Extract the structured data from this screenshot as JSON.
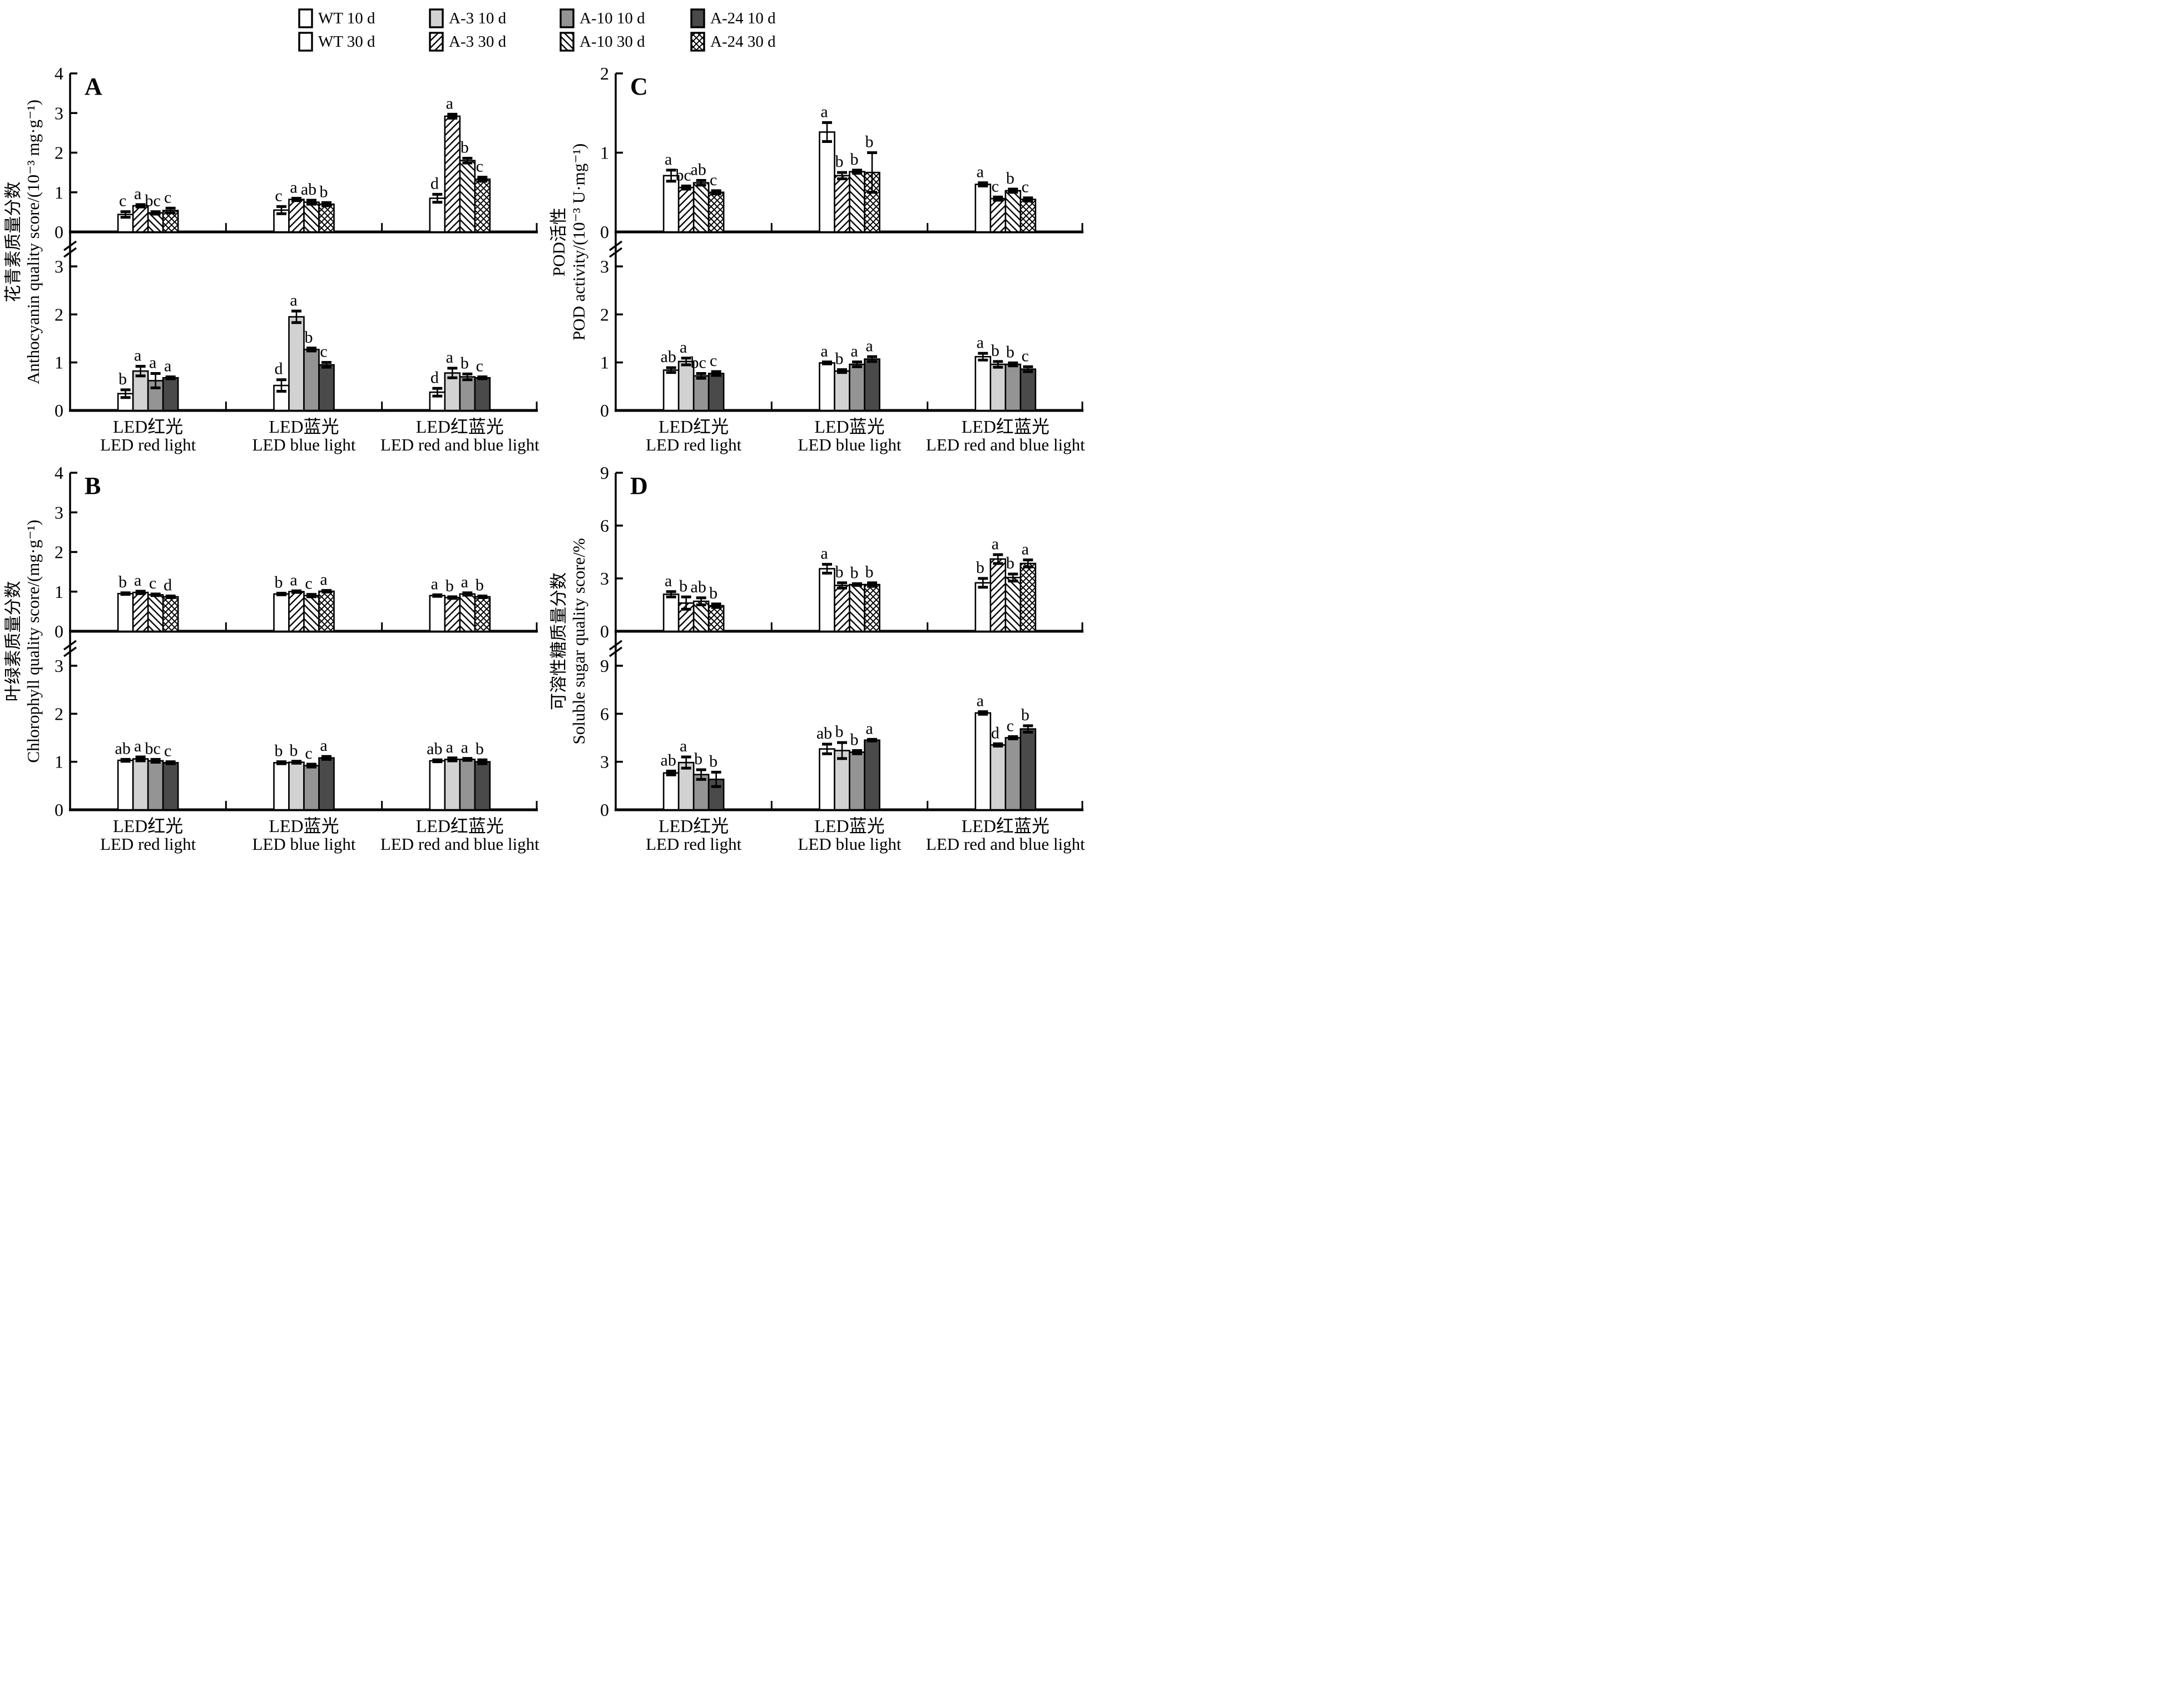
{
  "legend": {
    "items": [
      {
        "label": "WT 10 d",
        "series": "WT 10 d"
      },
      {
        "label": "A-3 10 d",
        "series": "A-3 10 d"
      },
      {
        "label": "A-10 10 d",
        "series": "A-10 10 d"
      },
      {
        "label": "A-24 10 d",
        "series": "A-24 10 d"
      },
      {
        "label": "WT 30 d",
        "series": "WT 30 d"
      },
      {
        "label": "A-3 30 d",
        "series": "A-3 30 d"
      },
      {
        "label": "A-10 30 d",
        "series": "A-10 30 d"
      },
      {
        "label": "A-24 30 d",
        "series": "A-24 30 d"
      }
    ]
  },
  "series_styles": {
    "WT 10 d": {
      "style": "solid",
      "fill": "#ffffff"
    },
    "A-3 10 d": {
      "style": "solid",
      "fill": "#d2d2d2"
    },
    "A-10 10 d": {
      "style": "solid",
      "fill": "#949494"
    },
    "A-24 10 d": {
      "style": "solid",
      "fill": "#4a4a4a"
    },
    "WT 30 d": {
      "style": "solid",
      "fill": "#ffffff"
    },
    "A-3 30 d": {
      "style": "hatch-fwd",
      "fill": "#ffffff"
    },
    "A-10 30 d": {
      "style": "hatch-back",
      "fill": "#ffffff"
    },
    "A-24 30 d": {
      "style": "hatch-cross",
      "fill": "#ffffff"
    }
  },
  "ink_color": "#000000",
  "x_groups": [
    {
      "label_cn": "LED红光",
      "label_en": "LED red light"
    },
    {
      "label_cn": "LED蓝光",
      "label_en": "LED blue light"
    },
    {
      "label_cn": "LED红蓝光",
      "label_en": "LED red and blue light"
    }
  ],
  "chart_data": [
    {
      "panel": "A",
      "type": "bar",
      "grid_position": "top-left",
      "ylabel_cn": "花青素质量分数",
      "ylabel_en": "Anthocyanin quality score/(10⁻³ mg·g⁻¹)",
      "categories": [
        "LED red light",
        "LED blue light",
        "LED red and blue light"
      ],
      "top": {
        "day": "30 d",
        "yticks": [
          0,
          1,
          2,
          3,
          4
        ],
        "axis_break": false,
        "series": [
          {
            "name": "WT 30 d",
            "values": [
              0.44,
              0.55,
              0.85
            ],
            "errors": [
              0.07,
              0.09,
              0.1
            ],
            "letters": [
              "c",
              "c",
              "d"
            ]
          },
          {
            "name": "A-3 30 d",
            "values": [
              0.66,
              0.82,
              2.92
            ],
            "errors": [
              0.03,
              0.03,
              0.05
            ],
            "letters": [
              "a",
              "a",
              "a"
            ]
          },
          {
            "name": "A-10 30 d",
            "values": [
              0.48,
              0.75,
              1.8
            ],
            "errors": [
              0.03,
              0.05,
              0.06
            ],
            "letters": [
              "bc",
              "ab",
              "b"
            ]
          },
          {
            "name": "A-24 30 d",
            "values": [
              0.54,
              0.7,
              1.33
            ],
            "errors": [
              0.06,
              0.04,
              0.05
            ],
            "letters": [
              "c",
              "b",
              "c"
            ]
          }
        ]
      },
      "bottom": {
        "day": "10 d",
        "yticks": [
          0,
          1,
          2,
          3
        ],
        "axis_break": true,
        "series": [
          {
            "name": "WT 10 d",
            "values": [
              0.35,
              0.52,
              0.38
            ],
            "errors": [
              0.08,
              0.12,
              0.08
            ],
            "letters": [
              "b",
              "d",
              "d"
            ]
          },
          {
            "name": "A-3 10 d",
            "values": [
              0.82,
              1.95,
              0.78
            ],
            "errors": [
              0.1,
              0.12,
              0.1
            ],
            "letters": [
              "a",
              "a",
              "a"
            ]
          },
          {
            "name": "A-10 10 d",
            "values": [
              0.62,
              1.27,
              0.7
            ],
            "errors": [
              0.15,
              0.03,
              0.06
            ],
            "letters": [
              "a",
              "b",
              "b"
            ]
          },
          {
            "name": "A-24 10 d",
            "values": [
              0.68,
              0.95,
              0.68
            ],
            "errors": [
              0.02,
              0.05,
              0.02
            ],
            "letters": [
              "a",
              "c",
              "c"
            ]
          }
        ]
      }
    },
    {
      "panel": "C",
      "type": "bar",
      "grid_position": "top-right",
      "ylabel_cn": "POD活性",
      "ylabel_en": "POD activity/(10⁻³ U·mg⁻¹)",
      "categories": [
        "LED red light",
        "LED blue light",
        "LED red and blue light"
      ],
      "top": {
        "day": "30 d",
        "yticks": [
          0,
          1,
          2
        ],
        "axis_break": false,
        "series": [
          {
            "name": "WT 30 d",
            "values": [
              0.71,
              1.26,
              0.6
            ],
            "errors": [
              0.07,
              0.12,
              0.02
            ],
            "letters": [
              "a",
              "a",
              "a"
            ]
          },
          {
            "name": "A-3 30 d",
            "values": [
              0.56,
              0.71,
              0.42
            ],
            "errors": [
              0.02,
              0.04,
              0.02
            ],
            "letters": [
              "bc",
              "b",
              "c"
            ]
          },
          {
            "name": "A-10 30 d",
            "values": [
              0.62,
              0.76,
              0.52
            ],
            "errors": [
              0.03,
              0.02,
              0.02
            ],
            "letters": [
              "ab",
              "b",
              "b"
            ]
          },
          {
            "name": "A-24 30 d",
            "values": [
              0.5,
              0.75,
              0.41
            ],
            "errors": [
              0.02,
              0.25,
              0.02
            ],
            "letters": [
              "c",
              "b",
              "c"
            ]
          }
        ]
      },
      "bottom": {
        "day": "10 d",
        "yticks": [
          0,
          1,
          2,
          3
        ],
        "axis_break": true,
        "series": [
          {
            "name": "WT 10 d",
            "values": [
              0.84,
              0.99,
              1.12
            ],
            "errors": [
              0.05,
              0.02,
              0.07
            ],
            "letters": [
              "ab",
              "a",
              "a"
            ]
          },
          {
            "name": "A-3 10 d",
            "values": [
              1.02,
              0.82,
              0.96
            ],
            "errors": [
              0.07,
              0.03,
              0.06
            ],
            "letters": [
              "a",
              "b",
              "b"
            ]
          },
          {
            "name": "A-10 10 d",
            "values": [
              0.72,
              0.96,
              0.96
            ],
            "errors": [
              0.05,
              0.05,
              0.03
            ],
            "letters": [
              "bc",
              "a",
              "b"
            ]
          },
          {
            "name": "A-24 10 d",
            "values": [
              0.77,
              1.07,
              0.86
            ],
            "errors": [
              0.04,
              0.05,
              0.05
            ],
            "letters": [
              "c",
              "a",
              "c"
            ]
          }
        ]
      }
    },
    {
      "panel": "B",
      "type": "bar",
      "grid_position": "bottom-left",
      "ylabel_cn": "叶绿素质量分数",
      "ylabel_en": "Chlorophyll quality score/(mg·g⁻¹)",
      "categories": [
        "LED red light",
        "LED blue light",
        "LED red and blue light"
      ],
      "top": {
        "day": "30 d",
        "yticks": [
          0,
          1,
          2,
          3,
          4
        ],
        "axis_break": false,
        "series": [
          {
            "name": "WT 30 d",
            "values": [
              0.95,
              0.94,
              0.9
            ],
            "errors": [
              0.02,
              0.02,
              0.02
            ],
            "letters": [
              "b",
              "b",
              "a"
            ]
          },
          {
            "name": "A-3 30 d",
            "values": [
              0.98,
              1.0,
              0.85
            ],
            "errors": [
              0.03,
              0.02,
              0.02
            ],
            "letters": [
              "a",
              "a",
              "b"
            ]
          },
          {
            "name": "A-10 30 d",
            "values": [
              0.92,
              0.9,
              0.94
            ],
            "errors": [
              0.02,
              0.03,
              0.03
            ],
            "letters": [
              "c",
              "c",
              "a"
            ]
          },
          {
            "name": "A-24 30 d",
            "values": [
              0.87,
              1.01,
              0.87
            ],
            "errors": [
              0.02,
              0.02,
              0.02
            ],
            "letters": [
              "d",
              "a",
              "b"
            ]
          }
        ]
      },
      "bottom": {
        "day": "10 d",
        "yticks": [
          0,
          1,
          2,
          3
        ],
        "axis_break": true,
        "series": [
          {
            "name": "WT 10 d",
            "values": [
              1.03,
              0.98,
              1.02
            ],
            "errors": [
              0.02,
              0.02,
              0.02
            ],
            "letters": [
              "ab",
              "b",
              "ab"
            ]
          },
          {
            "name": "A-3 10 d",
            "values": [
              1.06,
              0.99,
              1.05
            ],
            "errors": [
              0.04,
              0.02,
              0.03
            ],
            "letters": [
              "a",
              "b",
              "a"
            ]
          },
          {
            "name": "A-10 10 d",
            "values": [
              1.02,
              0.92,
              1.05
            ],
            "errors": [
              0.03,
              0.03,
              0.02
            ],
            "letters": [
              "bc",
              "c",
              "a"
            ]
          },
          {
            "name": "A-24 10 d",
            "values": [
              0.98,
              1.08,
              1.0
            ],
            "errors": [
              0.02,
              0.03,
              0.04
            ],
            "letters": [
              "c",
              "a",
              "b"
            ]
          }
        ]
      }
    },
    {
      "panel": "D",
      "type": "bar",
      "grid_position": "bottom-right",
      "ylabel_cn": "可溶性糖质量分数",
      "ylabel_en": "Soluble sugar quality score/%",
      "categories": [
        "LED red light",
        "LED blue light",
        "LED red and blue light"
      ],
      "top": {
        "day": "30 d",
        "yticks": [
          0,
          3,
          6,
          9
        ],
        "axis_break": false,
        "series": [
          {
            "name": "WT 30 d",
            "values": [
              2.1,
              3.55,
              2.75
            ],
            "errors": [
              0.15,
              0.25,
              0.25
            ],
            "letters": [
              "a",
              "a",
              "b"
            ]
          },
          {
            "name": "A-3 30 d",
            "values": [
              1.6,
              2.6,
              4.1
            ],
            "errors": [
              0.35,
              0.15,
              0.25
            ],
            "letters": [
              "b",
              "b",
              "a"
            ]
          },
          {
            "name": "A-10 30 d",
            "values": [
              1.7,
              2.65,
              3.05
            ],
            "errors": [
              0.2,
              0.05,
              0.2
            ],
            "letters": [
              "ab",
              "b",
              "b"
            ]
          },
          {
            "name": "A-24 30 d",
            "values": [
              1.45,
              2.65,
              3.85
            ],
            "errors": [
              0.1,
              0.1,
              0.2
            ],
            "letters": [
              "b",
              "b",
              "a"
            ]
          }
        ]
      },
      "bottom": {
        "day": "10 d",
        "yticks": [
          0,
          3,
          6,
          9
        ],
        "axis_break": true,
        "series": [
          {
            "name": "WT 10 d",
            "values": [
              2.3,
              3.8,
              6.05
            ],
            "errors": [
              0.12,
              0.3,
              0.08
            ],
            "letters": [
              "ab",
              "ab",
              "a"
            ]
          },
          {
            "name": "A-3 10 d",
            "values": [
              2.95,
              3.7,
              4.05
            ],
            "errors": [
              0.35,
              0.5,
              0.07
            ],
            "letters": [
              "a",
              "b",
              "d"
            ]
          },
          {
            "name": "A-10 10 d",
            "values": [
              2.2,
              3.6,
              4.5
            ],
            "errors": [
              0.3,
              0.1,
              0.07
            ],
            "letters": [
              "b",
              "b",
              "c"
            ]
          },
          {
            "name": "A-24 10 d",
            "values": [
              1.9,
              4.35,
              5.05
            ],
            "errors": [
              0.45,
              0.05,
              0.2
            ],
            "letters": [
              "b",
              "a",
              "b"
            ]
          }
        ]
      }
    }
  ]
}
